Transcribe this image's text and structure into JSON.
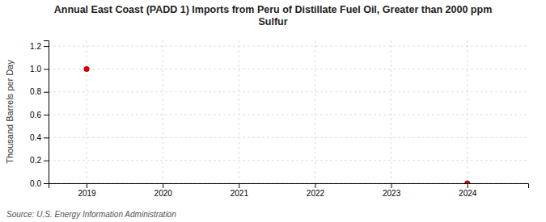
{
  "chart_data": {
    "type": "scatter",
    "title": "Annual East Coast (PADD 1) Imports from Peru of Distillate Fuel Oil, Greater than 2000 ppm\nSulfur",
    "y_label": "Thousand Barrels per Day",
    "source": "Source: U.S. Energy Information Administration",
    "x": [
      2019,
      2024
    ],
    "values": [
      1.0,
      0.0
    ],
    "color": "#cc0000",
    "xlim": [
      2018.5,
      2024.8
    ],
    "ylim": [
      0.0,
      1.25
    ],
    "xticks": [
      2019,
      2020,
      2021,
      2022,
      2023,
      2024
    ],
    "yticks": [
      {
        "value": 0.0,
        "label": "0.0"
      },
      0.2,
      0.4,
      0.6,
      0.8,
      {
        "value": 1.0,
        "label": "1.0"
      },
      1.2
    ],
    "grid": true
  }
}
